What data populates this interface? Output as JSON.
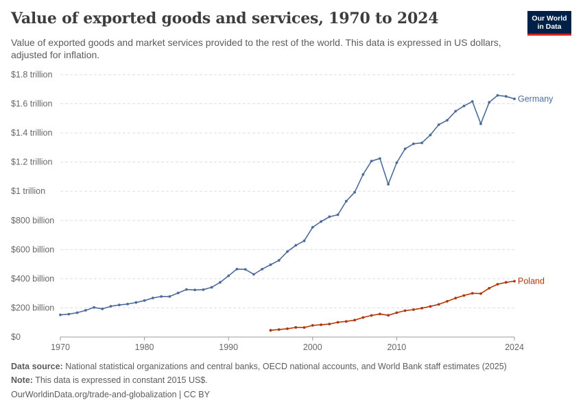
{
  "header": {
    "title": "Value of exported goods and services, 1970 to 2024",
    "subtitle": "Value of exported goods and market services provided to the rest of the world. This data is expressed in US dollars, adjusted for inflation.",
    "logo_line1": "Our World",
    "logo_line2": "in Data"
  },
  "footer": {
    "source_label": "Data source:",
    "source_text": " National statistical organizations and central banks, OECD national accounts, and World Bank staff estimates (2025)",
    "note_label": "Note:",
    "note_text": " This data is expressed in constant 2015 US$.",
    "link_text": "OurWorldinData.org/trade-and-globalization | CC BY"
  },
  "colors": {
    "germany": "#4c6a9c",
    "poland": "#b13507",
    "grid": "#dddddd",
    "axis": "#999999"
  },
  "chart_data": {
    "type": "line",
    "title": "Value of exported goods and services, 1970 to 2024",
    "xlim": [
      1970,
      2024
    ],
    "ylim": [
      0,
      1800
    ],
    "y_unit": "billion US$",
    "grid": true,
    "x_ticks": [
      1970,
      1980,
      1990,
      2000,
      2010,
      2024
    ],
    "x_tick_labels": [
      "1970",
      "1980",
      "1990",
      "2000",
      "2010",
      "2024"
    ],
    "y_ticks": [
      0,
      200,
      400,
      600,
      800,
      1000,
      1200,
      1400,
      1600,
      1800
    ],
    "y_tick_labels": [
      "$0",
      "$200 billion",
      "$400 billion",
      "$600 billion",
      "$800 billion",
      "$1 trillion",
      "$1.2 trillion",
      "$1.4 trillion",
      "$1.6 trillion",
      "$1.8 trillion"
    ],
    "series": [
      {
        "name": "Germany",
        "color": "#4c6a9c",
        "x": [
          1970,
          1971,
          1972,
          1973,
          1974,
          1975,
          1976,
          1977,
          1978,
          1979,
          1980,
          1981,
          1982,
          1983,
          1984,
          1985,
          1986,
          1987,
          1988,
          1989,
          1990,
          1991,
          1992,
          1993,
          1994,
          1995,
          1996,
          1997,
          1998,
          1999,
          2000,
          2001,
          2002,
          2003,
          2004,
          2005,
          2006,
          2007,
          2008,
          2009,
          2010,
          2011,
          2012,
          2013,
          2014,
          2015,
          2016,
          2017,
          2018,
          2019,
          2020,
          2021,
          2022,
          2023,
          2024
        ],
        "y": [
          152,
          157,
          167,
          183,
          203,
          193,
          211,
          220,
          226,
          237,
          250,
          268,
          278,
          278,
          302,
          326,
          323,
          325,
          341,
          375,
          420,
          466,
          464,
          430,
          466,
          496,
          526,
          586,
          629,
          660,
          753,
          792,
          825,
          839,
          932,
          993,
          1115,
          1207,
          1225,
          1048,
          1196,
          1291,
          1326,
          1332,
          1386,
          1457,
          1487,
          1549,
          1585,
          1616,
          1463,
          1610,
          1658,
          1651,
          1634
        ]
      },
      {
        "name": "Poland",
        "color": "#b13507",
        "x": [
          1995,
          1996,
          1997,
          1998,
          1999,
          2000,
          2001,
          2002,
          2003,
          2004,
          2005,
          2006,
          2007,
          2008,
          2009,
          2010,
          2011,
          2012,
          2013,
          2014,
          2015,
          2016,
          2017,
          2018,
          2019,
          2020,
          2021,
          2022,
          2023,
          2024
        ],
        "y": [
          46,
          51,
          57,
          66,
          65,
          80,
          84,
          89,
          101,
          107,
          116,
          134,
          148,
          158,
          149,
          167,
          181,
          188,
          198,
          210,
          224,
          245,
          267,
          285,
          300,
          298,
          335,
          362,
          375,
          383
        ]
      }
    ]
  }
}
